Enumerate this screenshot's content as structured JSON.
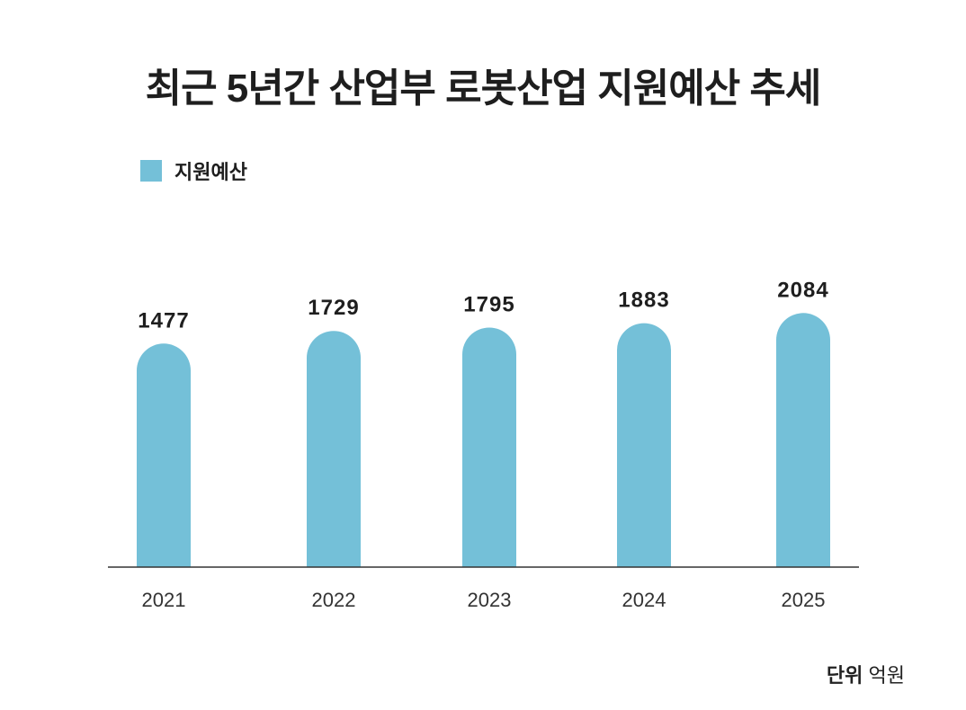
{
  "chart_data": {
    "type": "bar",
    "title": "최근 5년간 산업부 로봇산업 지원예산 추세",
    "categories": [
      "2021",
      "2022",
      "2023",
      "2024",
      "2025"
    ],
    "series": [
      {
        "name": "지원예산",
        "values": [
          1477,
          1729,
          1795,
          1883,
          2084
        ]
      }
    ],
    "data_labels": [
      "1477",
      "1729",
      "1795",
      "1883",
      "2084"
    ],
    "xlabel": "",
    "ylabel": "",
    "ylim": [
      -2964,
      2300
    ],
    "grid": false,
    "legend": "top-left",
    "unit_label": "단위",
    "unit_value": "억원",
    "colors": {
      "bar": "#74c0d8",
      "axis": "#333333"
    }
  }
}
